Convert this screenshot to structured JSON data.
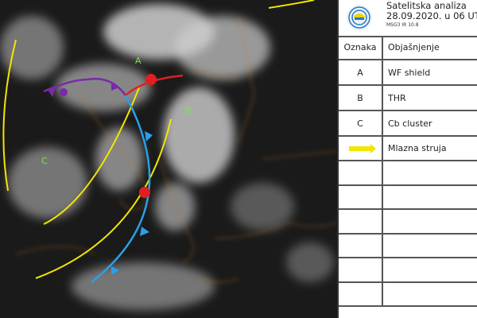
{
  "map": {
    "labels": {
      "a": "A",
      "b": "B",
      "c": "C"
    },
    "colors": {
      "jet": "#f2e600",
      "warm_front": "#e02020",
      "cold_front": "#2aa0e8",
      "occluded_front": "#7a2aa8",
      "borders": "#c8782a",
      "label": "#7de05a"
    }
  },
  "legend": {
    "title": "Satelitska analiza",
    "date": "28.09.2020. u 06 UTC",
    "instrument": "MSG3 IR 10.8",
    "columns": {
      "mark": "Oznaka",
      "explanation": "Objašnjenje"
    },
    "rows": [
      {
        "mark": "A",
        "text": "WF shield"
      },
      {
        "mark": "B",
        "text": "THR"
      },
      {
        "mark": "C",
        "text": "Cb cluster"
      },
      {
        "mark": "jet-arrow",
        "text": "Mlazna struja"
      }
    ]
  }
}
